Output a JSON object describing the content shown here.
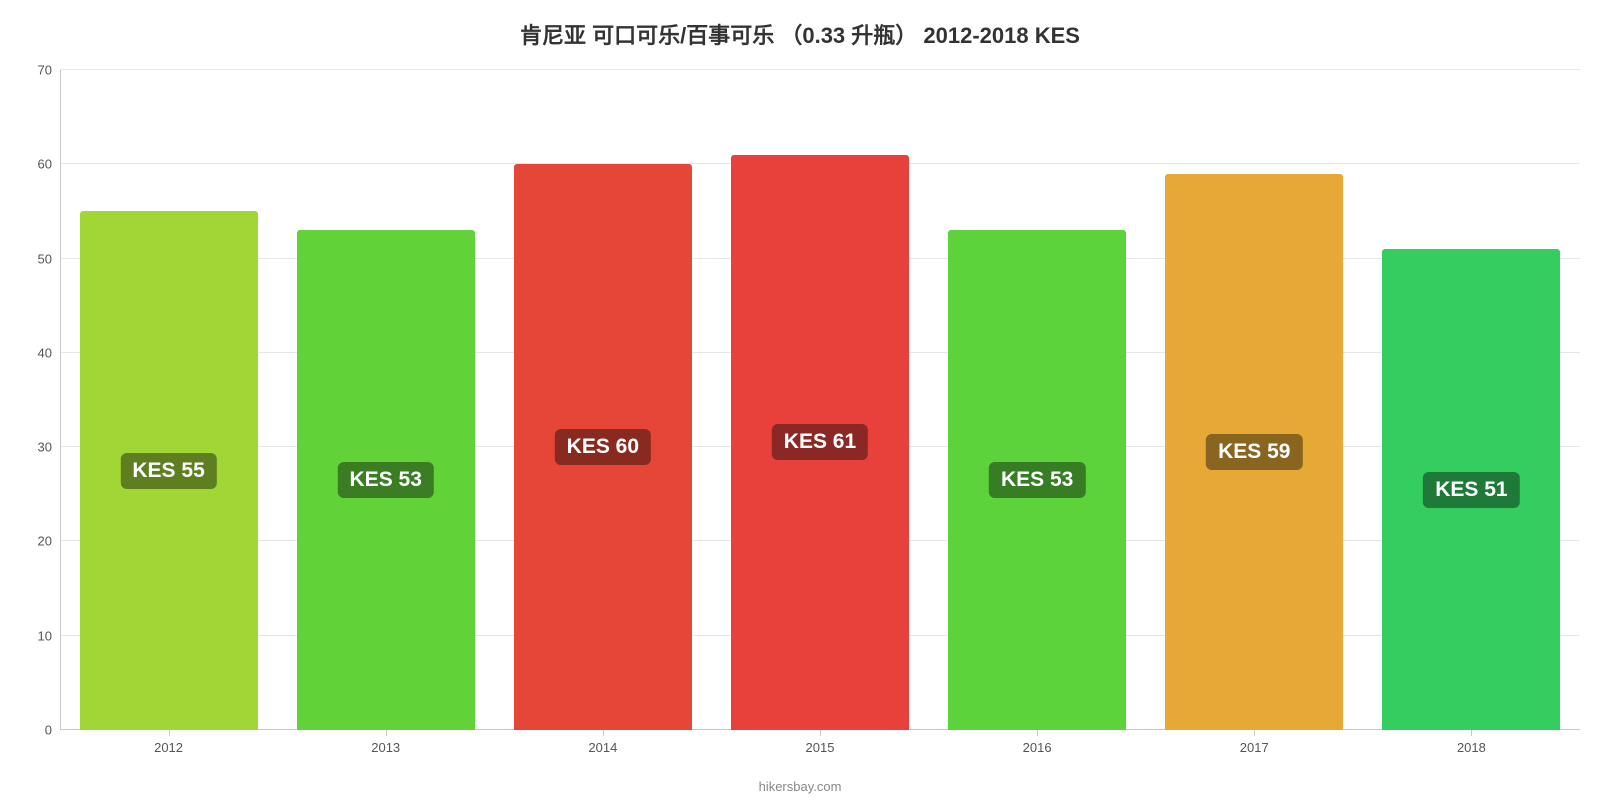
{
  "chart": {
    "type": "bar",
    "title": "肯尼亚 可口可乐/百事可乐 （0.33 升瓶） 2012-2018 KES",
    "title_fontsize": 22,
    "title_color": "#333333",
    "background_color": "#ffffff",
    "grid_color": "#e6e6e6",
    "axis_color": "#c8c8c8",
    "tick_label_color": "#555555",
    "tick_label_fontsize": 13,
    "ylim": [
      0,
      70
    ],
    "ytick_step": 10,
    "yticks": [
      "0",
      "10",
      "20",
      "30",
      "40",
      "50",
      "60",
      "70"
    ],
    "categories": [
      "2012",
      "2013",
      "2014",
      "2015",
      "2016",
      "2017",
      "2018"
    ],
    "bar_width_pct": 82,
    "bars": [
      {
        "year": "2012",
        "value": 55,
        "label": "KES 55",
        "bar_color": "#a0d635",
        "badge_bg": "#5f7e20"
      },
      {
        "year": "2013",
        "value": 53,
        "label": "KES 53",
        "bar_color": "#61d338",
        "badge_bg": "#3b7d22"
      },
      {
        "year": "2014",
        "value": 60,
        "label": "KES 60",
        "bar_color": "#e64637",
        "badge_bg": "#892a21"
      },
      {
        "year": "2015",
        "value": 61,
        "label": "KES 61",
        "bar_color": "#e8413c",
        "badge_bg": "#8b2724"
      },
      {
        "year": "2016",
        "value": 53,
        "label": "KES 53",
        "bar_color": "#5cd23b",
        "badge_bg": "#377d23"
      },
      {
        "year": "2017",
        "value": 59,
        "label": "KES 59",
        "bar_color": "#e6a935",
        "badge_bg": "#89651f"
      },
      {
        "year": "2018",
        "value": 51,
        "label": "KES 51",
        "bar_color": "#33cd60",
        "badge_bg": "#1f7a3a"
      }
    ],
    "badge_fontsize": 21,
    "badge_radius": 6,
    "footer": "hikersbay.com",
    "footer_color": "#888888",
    "footer_fontsize": 13
  }
}
